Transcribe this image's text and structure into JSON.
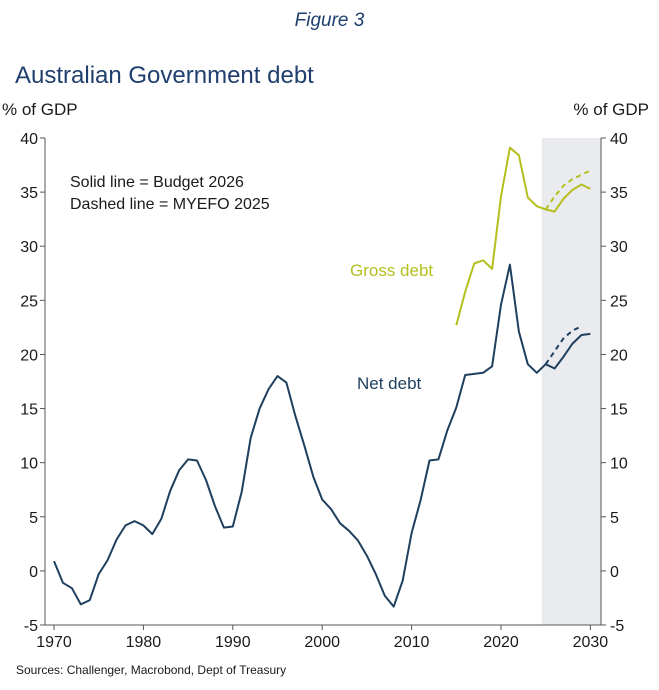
{
  "figure_label": "Figure 3",
  "source": "Sources: Challenger, Macrobond, Dept of Treasury",
  "chart_data": {
    "type": "line",
    "title": "Australian Government debt",
    "ylabel_left": "% of GDP",
    "ylabel_right": "% of GDP",
    "xlim": [
      1970,
      2031
    ],
    "ylim": [
      -5,
      40
    ],
    "x_ticks": [
      1970,
      1980,
      1990,
      2000,
      2010,
      2020,
      2030
    ],
    "y_ticks": [
      -5,
      0,
      5,
      10,
      15,
      20,
      25,
      30,
      35,
      40
    ],
    "forecast_shading": [
      2025,
      2031
    ],
    "grid": false,
    "notes": [
      "Solid line = Budget 2026",
      "Dashed line = MYEFO 2025"
    ],
    "colors": {
      "net": "#1f3f5e",
      "gross": "#b5bf1e",
      "shade": "#e9ebee"
    },
    "series": [
      {
        "name": "Net debt",
        "style": "solid",
        "x": [
          1970,
          1971,
          1972,
          1973,
          1974,
          1975,
          1976,
          1977,
          1978,
          1979,
          1980,
          1981,
          1982,
          1983,
          1984,
          1985,
          1986,
          1987,
          1988,
          1989,
          1990,
          1991,
          1992,
          1993,
          1994,
          1995,
          1996,
          1997,
          1998,
          1999,
          2000,
          2001,
          2002,
          2003,
          2004,
          2005,
          2006,
          2007,
          2008,
          2009,
          2010,
          2011,
          2012,
          2013,
          2014,
          2015,
          2016,
          2017,
          2018,
          2019,
          2020,
          2021,
          2022,
          2023,
          2024,
          2025,
          2026,
          2027,
          2028,
          2029,
          2030
        ],
        "values": [
          0.9,
          -1.1,
          -1.6,
          -3.1,
          -2.7,
          -0.3,
          1.0,
          2.9,
          4.2,
          4.6,
          4.2,
          3.4,
          4.8,
          7.4,
          9.3,
          10.3,
          10.2,
          8.4,
          6.0,
          4.0,
          4.1,
          7.3,
          12.3,
          15.0,
          16.8,
          18.0,
          17.4,
          14.3,
          11.6,
          8.7,
          6.6,
          5.7,
          4.4,
          3.7,
          2.8,
          1.4,
          -0.3,
          -2.3,
          -3.3,
          -0.9,
          3.5,
          6.5,
          10.2,
          10.3,
          13.0,
          15.1,
          18.1,
          18.2,
          18.3,
          18.9,
          24.6,
          28.3,
          22.1,
          19.1,
          18.3,
          19.1,
          18.7,
          19.8,
          21.0,
          21.8,
          21.9
        ]
      },
      {
        "name": "Net debt (MYEFO 2025)",
        "style": "dashed",
        "x": [
          2025,
          2026,
          2027,
          2028,
          2029
        ],
        "values": [
          19.1,
          20.3,
          21.5,
          22.2,
          22.6
        ]
      },
      {
        "name": "Gross debt",
        "style": "solid",
        "x": [
          2015,
          2016,
          2017,
          2018,
          2019,
          2020,
          2021,
          2022,
          2023,
          2024,
          2025,
          2026,
          2027,
          2028,
          2029,
          2030
        ],
        "values": [
          22.7,
          25.8,
          28.4,
          28.7,
          27.9,
          34.6,
          39.1,
          38.4,
          34.5,
          33.7,
          33.4,
          33.2,
          34.4,
          35.2,
          35.7,
          35.3
        ]
      },
      {
        "name": "Gross debt (MYEFO 2025)",
        "style": "dashed",
        "x": [
          2025,
          2026,
          2027,
          2028,
          2029,
          2030
        ],
        "values": [
          33.4,
          34.6,
          35.6,
          36.2,
          36.6,
          37.0
        ]
      }
    ],
    "series_labels": [
      "Gross debt",
      "Net debt"
    ]
  }
}
